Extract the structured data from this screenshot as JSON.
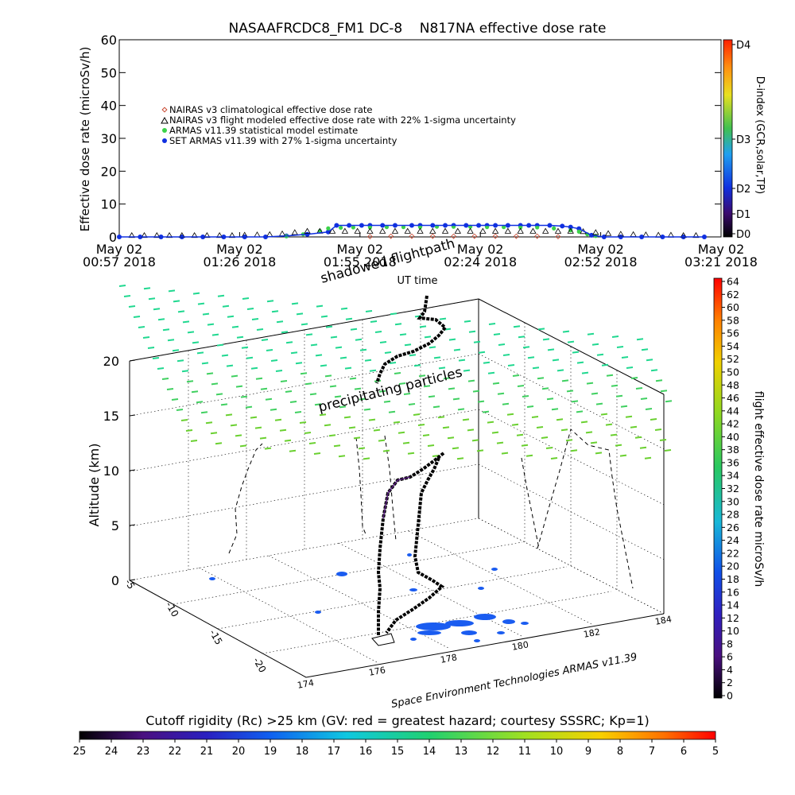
{
  "chart_data": [
    {
      "type": "scatter",
      "title": "NASAAFRCDC8_FM1 DC-8    N817NA effective dose rate",
      "xlabel": "UT time",
      "ylabel": "Effective dose rate (microSv/h)",
      "ylim": [
        0,
        60
      ],
      "yticks": [
        "0",
        "10",
        "20",
        "30",
        "40",
        "50",
        "60"
      ],
      "xticks": [
        {
          "l1": "May 02",
          "l2": "00:57 2018"
        },
        {
          "l1": "May 02",
          "l2": "01:26 2018"
        },
        {
          "l1": "May 02",
          "l2": "01:55 2018"
        },
        {
          "l1": "May 02",
          "l2": "02:24 2018"
        },
        {
          "l1": "May 02",
          "l2": "02:52 2018"
        },
        {
          "l1": "May 02",
          "l2": "03:21 2018"
        }
      ],
      "legend": [
        {
          "name": "NAIRAS v3 climatological effective dose rate",
          "color": "#c8462e",
          "marker": "diamond"
        },
        {
          "name": "NAIRAS v3 flight modeled effective dose rate with 22% 1-sigma uncertainty",
          "color": "#000000",
          "marker": "triangle"
        },
        {
          "name": "ARMAS v11.39 statistical model estimate",
          "color": "#3cd24a",
          "marker": "star"
        },
        {
          "name": "SET ARMAS v11.39 with 27% 1-sigma uncertainty",
          "color": "#1030e0",
          "marker": "dot"
        }
      ],
      "x_range": [
        0,
        144
      ],
      "series": [
        {
          "name": "SET ARMAS v11.39 with 27% 1-sigma uncertainty",
          "color": "#1030e0",
          "x": [
            0,
            5,
            10,
            15,
            20,
            25,
            30,
            35,
            40,
            45,
            50,
            52,
            55,
            58,
            60,
            63,
            66,
            70,
            72,
            75,
            78,
            80,
            83,
            86,
            88,
            90,
            93,
            96,
            98,
            100,
            103,
            106,
            108,
            110,
            113,
            116,
            120,
            125,
            130,
            135,
            140
          ],
          "y": [
            0,
            0,
            0,
            0,
            0,
            0,
            0,
            0,
            0.3,
            0.8,
            1.5,
            3.5,
            3.5,
            3.5,
            3.5,
            3.5,
            3.5,
            3.5,
            3.5,
            3.5,
            3.5,
            3.5,
            3.5,
            3.5,
            3.5,
            3.5,
            3.5,
            3.5,
            3.5,
            3.5,
            3.5,
            3.3,
            3.0,
            2.5,
            0.5,
            0,
            0,
            0,
            0,
            0,
            0
          ]
        },
        {
          "name": "ARMAS v11.39 statistical model estimate",
          "color": "#3cd24a",
          "x": [
            40,
            44,
            48,
            50,
            53,
            56,
            60,
            64,
            68,
            72,
            76,
            80,
            84,
            88,
            92,
            96,
            100,
            104,
            108,
            110,
            112,
            114
          ],
          "y": [
            0.2,
            0.8,
            1.8,
            2.6,
            2.8,
            2.9,
            2.9,
            3.0,
            3.0,
            3.0,
            3.1,
            3.1,
            3.1,
            3.0,
            3.0,
            2.9,
            2.9,
            2.6,
            2.0,
            1.6,
            0.8,
            0.3
          ]
        },
        {
          "name": "NAIRAS v3 flight modeled effective dose rate with 22% 1-sigma uncertainty",
          "color": "#000000",
          "x": [
            3,
            6,
            9,
            12,
            15,
            18,
            21,
            24,
            27,
            30,
            33,
            36,
            39,
            42,
            45,
            48,
            51,
            54,
            57,
            60,
            63,
            66,
            69,
            72,
            75,
            78,
            81,
            84,
            87,
            90,
            93,
            96,
            99,
            102,
            105,
            108,
            111,
            114,
            117,
            120,
            123,
            126,
            129,
            132,
            135,
            138
          ],
          "y": [
            0.3,
            0.3,
            0.3,
            0.3,
            0.3,
            0.3,
            0.3,
            0.3,
            0.3,
            0.4,
            0.5,
            0.6,
            0.8,
            1.2,
            1.6,
            1.6,
            1.6,
            1.6,
            1.6,
            1.6,
            1.6,
            1.6,
            1.6,
            1.6,
            1.6,
            1.6,
            1.6,
            1.6,
            1.6,
            1.6,
            1.6,
            1.6,
            1.6,
            1.6,
            1.6,
            1.6,
            1.5,
            1.2,
            0.9,
            0.7,
            0.6,
            0.5,
            0.4,
            0.4,
            0.3,
            0.3
          ]
        },
        {
          "name": "NAIRAS v3 climatological effective dose rate",
          "color": "#c8462e",
          "x": [
            60,
            65,
            70,
            75,
            80,
            85,
            90,
            95,
            100,
            105
          ],
          "y": [
            0.1,
            0.2,
            0.2,
            0.2,
            0.2,
            0.2,
            0.2,
            0.2,
            0.2,
            0.1
          ]
        }
      ],
      "right_axis": {
        "label": "D-index (GCR,solar,TP)",
        "ticks": [
          "D0",
          "D1",
          "D2",
          "D3",
          "D4"
        ]
      }
    },
    {
      "type": "scatter",
      "title": "",
      "annotations": [
        "shadowed flightpath",
        "precipitating particles",
        "Space Environment Technologies ARMAS v11.39"
      ],
      "ylabel": "Altitude (km)",
      "zticks": [
        "0",
        "5",
        "10",
        "15",
        "20"
      ],
      "lon_ticks": [
        "174",
        "176",
        "178",
        "180",
        "182",
        "184"
      ],
      "lat_ticks": [
        "-5",
        "-10",
        "-15",
        "-20"
      ],
      "colorbar": {
        "label": "flight effective dose rate microSv/h",
        "ticks": [
          "0",
          "2",
          "4",
          "6",
          "8",
          "10",
          "12",
          "14",
          "16",
          "18",
          "20",
          "22",
          "24",
          "26",
          "28",
          "30",
          "32",
          "34",
          "36",
          "38",
          "40",
          "42",
          "44",
          "46",
          "48",
          "50",
          "52",
          "54",
          "56",
          "58",
          "60",
          "62",
          "64"
        ]
      }
    }
  ],
  "footer": {
    "title": "Cutoff rigidity (Rc) >25 km (GV: red = greatest hazard; courtesy SSSRC; Kp=1)",
    "ticks": [
      "25",
      "24",
      "23",
      "22",
      "21",
      "20",
      "19",
      "18",
      "17",
      "16",
      "15",
      "14",
      "13",
      "12",
      "11",
      "10",
      "9",
      "8",
      "7",
      "6",
      "5"
    ]
  }
}
